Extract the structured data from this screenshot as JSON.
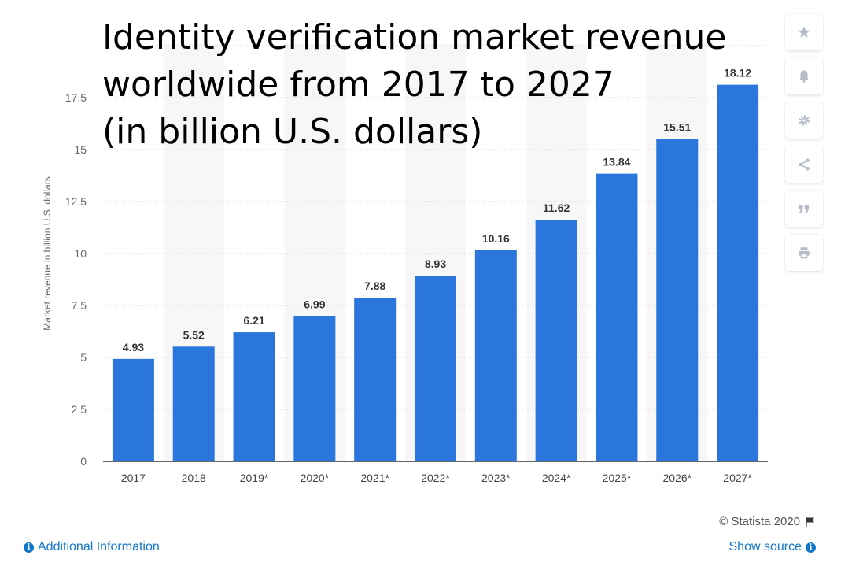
{
  "chart_data": {
    "type": "bar",
    "title": "Identity verification market revenue\nworldwide from 2017 to 2027\n(in billion U.S. dollars)",
    "xlabel": "",
    "ylabel": "Market revenue in billion U.S. dollars",
    "categories": [
      "2017",
      "2018",
      "2019*",
      "2020*",
      "2021*",
      "2022*",
      "2023*",
      "2024*",
      "2025*",
      "2026*",
      "2027*"
    ],
    "values": [
      4.93,
      5.52,
      6.21,
      6.99,
      7.88,
      8.93,
      10.16,
      11.62,
      13.84,
      15.51,
      18.12
    ],
    "value_labels": [
      "4.93",
      "5.52",
      "6.21",
      "6.99",
      "7.88",
      "8.93",
      "10.16",
      "11.62",
      "13.84",
      "15.51",
      "18.12"
    ],
    "yticks": [
      0,
      2.5,
      5,
      7.5,
      10,
      12.5,
      15,
      17.5
    ],
    "ytick_labels": [
      "0",
      "2.5",
      "5",
      "7.5",
      "10",
      "12.5",
      "15",
      "17.5"
    ],
    "ylim": [
      0,
      20
    ],
    "grid": true,
    "legend": "none",
    "bar_color": "#2a76dd"
  },
  "footer": {
    "copyright": "© Statista 2020",
    "additional_info": "Additional Information",
    "show_source": "Show source"
  },
  "toolbar": {
    "icons": [
      "star-icon",
      "bell-icon",
      "gear-icon",
      "share-icon",
      "quote-icon",
      "print-icon"
    ]
  }
}
